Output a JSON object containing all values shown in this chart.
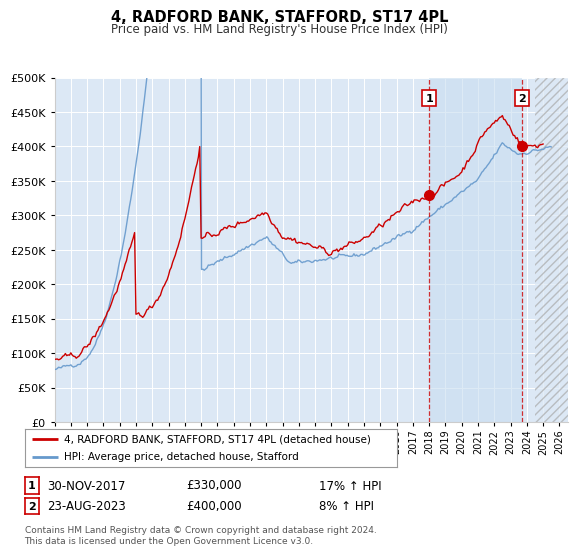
{
  "title": "4, RADFORD BANK, STAFFORD, ST17 4PL",
  "subtitle": "Price paid vs. HM Land Registry's House Price Index (HPI)",
  "ylim": [
    0,
    500000
  ],
  "yticks": [
    0,
    50000,
    100000,
    150000,
    200000,
    250000,
    300000,
    350000,
    400000,
    450000,
    500000
  ],
  "background_color": "#ffffff",
  "plot_bg_color": "#dce8f5",
  "grid_color": "#ffffff",
  "hpi_color": "#6699cc",
  "price_color": "#cc0000",
  "legend_label_red": "4, RADFORD BANK, STAFFORD, ST17 4PL (detached house)",
  "legend_label_blue": "HPI: Average price, detached house, Stafford",
  "annotation_1_label": "1",
  "annotation_1_date": "30-NOV-2017",
  "annotation_1_price": "£330,000",
  "annotation_1_hpi": "17% ↑ HPI",
  "annotation_2_label": "2",
  "annotation_2_date": "23-AUG-2023",
  "annotation_2_price": "£400,000",
  "annotation_2_hpi": "8% ↑ HPI",
  "footer": "Contains HM Land Registry data © Crown copyright and database right 2024.\nThis data is licensed under the Open Government Licence v3.0.",
  "vline1_x": 2018.0,
  "vline2_x": 2023.7,
  "marker1_x": 2018.0,
  "marker1_y": 330000,
  "marker2_x": 2023.7,
  "marker2_y": 400000,
  "shade_start": 2018.0,
  "shade_end": 2023.7,
  "hatch_start": 2024.5,
  "xmin": 1995,
  "xmax": 2026.5
}
